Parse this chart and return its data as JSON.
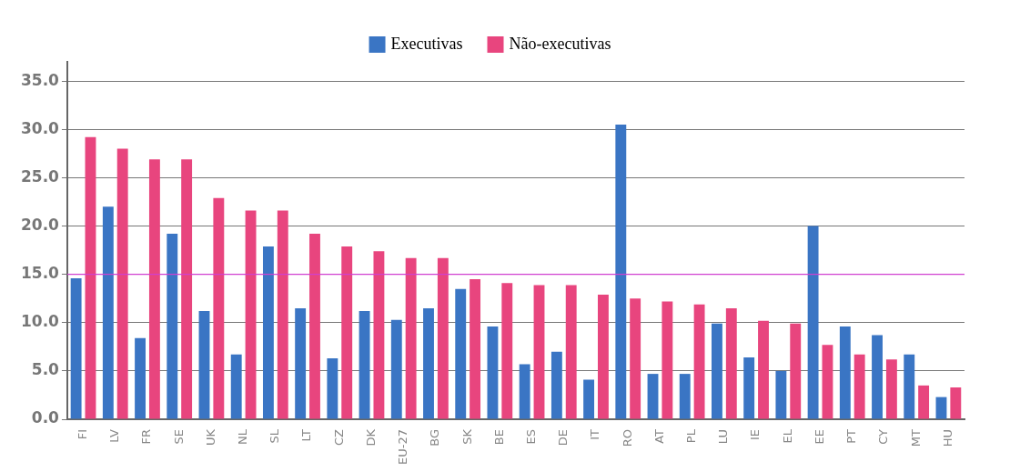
{
  "chart_data": {
    "type": "bar",
    "categories": [
      "FI",
      "LV",
      "FR",
      "SE",
      "UK",
      "NL",
      "SL",
      "LT",
      "CZ",
      "DK",
      "EU-27",
      "BG",
      "SK",
      "BE",
      "ES",
      "DE",
      "IT",
      "RO",
      "AT",
      "PL",
      "LU",
      "IE",
      "EL",
      "EE",
      "PT",
      "CY",
      "MT",
      "HU"
    ],
    "series": [
      {
        "name": "Executivas",
        "color": "#3a75c4",
        "values": [
          14.6,
          22.0,
          8.4,
          19.2,
          11.2,
          6.7,
          17.9,
          11.5,
          6.3,
          11.2,
          10.3,
          11.5,
          13.5,
          9.6,
          5.7,
          7.0,
          4.1,
          30.5,
          4.7,
          4.7,
          9.9,
          6.4,
          5.0,
          20.0,
          9.6,
          8.7,
          6.7,
          2.3
        ]
      },
      {
        "name": "Não-executivas",
        "color": "#e8457e",
        "values": [
          29.2,
          28.0,
          26.9,
          26.9,
          22.9,
          21.6,
          21.6,
          19.2,
          17.9,
          17.4,
          16.7,
          16.7,
          14.5,
          14.1,
          13.9,
          13.9,
          12.9,
          12.5,
          12.2,
          11.9,
          11.5,
          10.2,
          9.9,
          7.7,
          6.7,
          6.2,
          3.5,
          3.3
        ]
      }
    ],
    "ylim": [
      0,
      37
    ],
    "yticks": [
      {
        "value": 0,
        "label": "0.0"
      },
      {
        "value": 5,
        "label": "5.0"
      },
      {
        "value": 10,
        "label": "10.0"
      },
      {
        "value": 15,
        "label": "15.0"
      },
      {
        "value": 20,
        "label": "20.0"
      },
      {
        "value": 25,
        "label": "25.0"
      },
      {
        "value": 30,
        "label": "30.0"
      },
      {
        "value": 35,
        "label": "35.0"
      }
    ],
    "grid": "y",
    "legend": "top",
    "marker": "square",
    "ref_lines": [
      {
        "axis": "y",
        "value": 15,
        "color": "#d040d0"
      }
    ]
  }
}
